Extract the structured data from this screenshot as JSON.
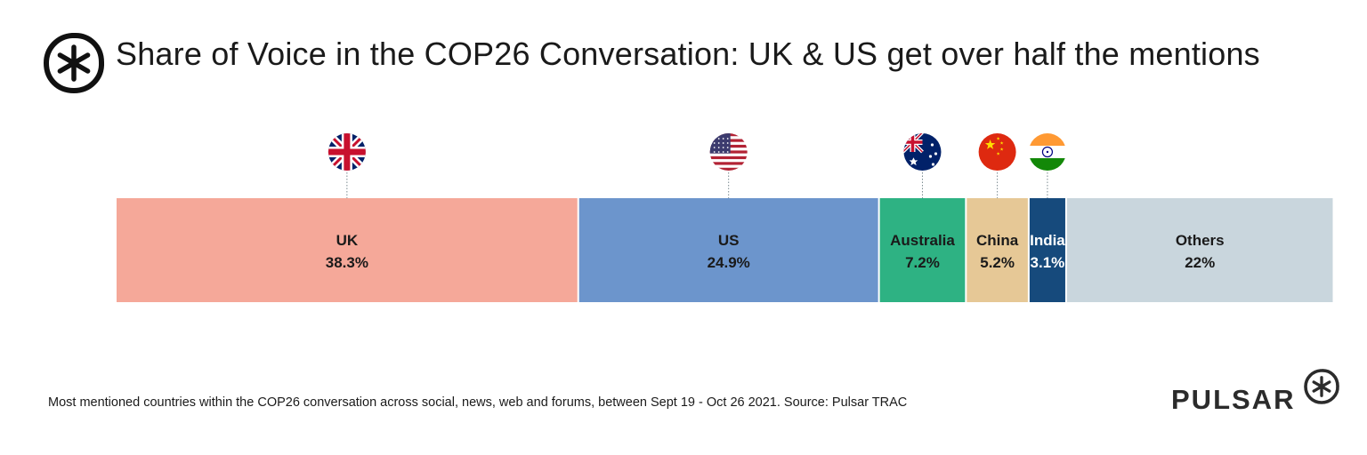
{
  "header": {
    "title": "Share of Voice in the COP26 Conversation: UK & US get over half the mentions",
    "logo_icon": "asterisk-circle-icon"
  },
  "chart_data": {
    "type": "bar",
    "orientation": "horizontal-stacked",
    "title": "Share of Voice in the COP26 Conversation: UK & US get over half the mentions",
    "unit": "%",
    "total": 100,
    "categories": [
      "UK",
      "US",
      "Australia",
      "China",
      "India",
      "Others"
    ],
    "values": [
      38.3,
      24.9,
      7.2,
      5.2,
      3.1,
      22
    ],
    "value_labels": [
      "38.3%",
      "24.9%",
      "7.2%",
      "5.2%",
      "3.1%",
      "22%"
    ],
    "colors": [
      "#f5a899",
      "#6c95cc",
      "#2eb283",
      "#e6c896",
      "#164a7c",
      "#c9d6dd"
    ],
    "label_colors": [
      "#1a1a1a",
      "#1a1a1a",
      "#1a1a1a",
      "#1a1a1a",
      "#ffffff",
      "#1a1a1a"
    ],
    "flag_icons": [
      "uk-flag-icon",
      "us-flag-icon",
      "australia-flag-icon",
      "china-flag-icon",
      "india-flag-icon",
      ""
    ],
    "legend": "none",
    "grid": false
  },
  "footer": {
    "note": "Most mentioned countries within the COP26 conversation across social, news, web and forums, between Sept 19 - Oct 26 2021. Source: Pulsar TRAC",
    "brand": "PULSAR",
    "brand_icon": "asterisk-circle-icon"
  }
}
